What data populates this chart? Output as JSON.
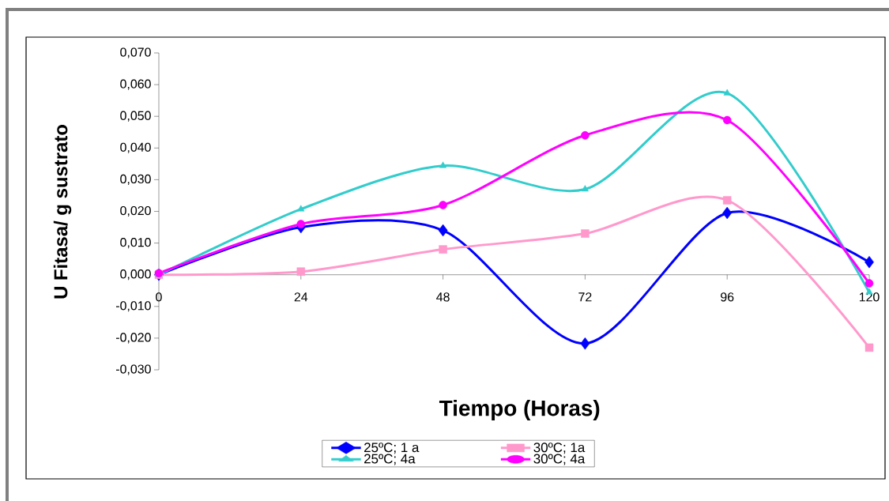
{
  "chart_data": {
    "type": "line",
    "xlabel": "Tiempo (Horas)",
    "ylabel": "U Fitasa/ g sustrato",
    "x": [
      0,
      24,
      48,
      72,
      96,
      120
    ],
    "series": [
      {
        "name": "25ºC; 1 a",
        "color": "#0000ff",
        "marker": "diamond",
        "values": [
          0.0,
          0.015,
          0.014,
          -0.0217,
          0.0195,
          0.004
        ]
      },
      {
        "name": "30ºC; 1a",
        "color": "#ff99cc",
        "marker": "square",
        "values": [
          0.0,
          0.001,
          0.008,
          0.013,
          0.0235,
          -0.023
        ]
      },
      {
        "name": "25ºC; 4a",
        "color": "#33cccc",
        "marker": "triangle",
        "values": [
          0.0,
          0.0207,
          0.0344,
          0.027,
          0.0573,
          -0.0055
        ]
      },
      {
        "name": "30ºC; 4a",
        "color": "#ff00ff",
        "marker": "circle",
        "values": [
          0.0005,
          0.016,
          0.022,
          0.044,
          0.0488,
          -0.0027
        ]
      }
    ],
    "xlim": [
      0,
      120
    ],
    "xticks": [
      0,
      24,
      48,
      72,
      96,
      120
    ],
    "ylim": [
      -0.03,
      0.07
    ],
    "yticks": [
      {
        "value": -0.03,
        "label": "-0,030"
      },
      {
        "value": -0.02,
        "label": "-0,020"
      },
      {
        "value": -0.01,
        "label": "-0,010"
      },
      {
        "value": 0,
        "label": "0,000"
      },
      {
        "value": 0.01,
        "label": "0,010"
      },
      {
        "value": 0.02,
        "label": "0,020"
      },
      {
        "value": 0.03,
        "label": "0,030"
      },
      {
        "value": 0.04,
        "label": "0,040"
      },
      {
        "value": 0.05,
        "label": "0,050"
      },
      {
        "value": 0.06,
        "label": "0,060"
      },
      {
        "value": 0.07,
        "label": "0,070"
      }
    ],
    "grid": false,
    "legend": "bottom",
    "line_style": "solid"
  }
}
